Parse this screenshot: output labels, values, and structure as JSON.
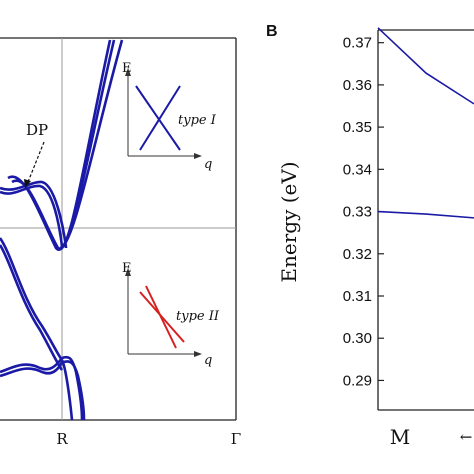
{
  "colors": {
    "band": "#1a1aa6",
    "axis": "#222222",
    "guide": "#9a9a9a",
    "type2": "#d62020"
  },
  "panel_b_label": "B",
  "chart_data": [
    {
      "type": "line",
      "panel": "A",
      "ticks_x": [
        "R",
        "Γ"
      ],
      "annotations": {
        "dp": "DP",
        "inset1_label": "type I",
        "inset2_label": "type II",
        "inset_y": "E",
        "inset_x": "q"
      },
      "series": [
        {
          "values": [
            [
              -0.5,
              0.0
            ],
            [
              -0.15,
              0.03
            ],
            [
              0.0,
              0.028
            ],
            [
              0.2,
              0.02
            ],
            [
              0.35,
              0.015
            ],
            [
              0.5,
              0.018
            ]
          ]
        },
        {
          "values": [
            [
              0.1,
              0.95
            ],
            [
              0.18,
              0.88
            ],
            [
              0.28,
              0.87
            ],
            [
              0.35,
              0.89
            ],
            [
              0.45,
              0.95
            ],
            [
              0.55,
              0.98
            ]
          ]
        },
        {
          "values": [
            [
              0.2,
              0.86
            ],
            [
              0.3,
              0.82
            ],
            [
              0.45,
              0.8
            ],
            [
              0.6,
              0.81
            ]
          ]
        },
        {
          "values": [
            [
              0.5,
              0.45
            ],
            [
              0.58,
              0.35
            ],
            [
              0.7,
              0.3
            ],
            [
              0.82,
              0.32
            ],
            [
              0.95,
              0.42
            ]
          ]
        },
        {
          "values": [
            [
              0.75,
              0.6
            ],
            [
              0.9,
              0.5
            ],
            [
              1.0,
              0.47
            ],
            [
              1.1,
              0.52
            ],
            [
              1.2,
              0.6
            ]
          ]
        }
      ]
    },
    {
      "type": "line",
      "panel": "B",
      "ylabel": "Energy (eV)",
      "ticks_x": [
        "M"
      ],
      "x_arrow": "←",
      "ylim": [
        0.283,
        0.373
      ],
      "yticks": [
        "0.37",
        "0.36",
        "0.35",
        "0.34",
        "0.33",
        "0.32",
        "0.31",
        "0.30",
        "0.29"
      ],
      "series": [
        {
          "values": [
            [
              0.0,
              0.3735
            ],
            [
              0.5,
              0.3628
            ],
            [
              1.0,
              0.3555
            ]
          ]
        },
        {
          "values": [
            [
              0.0,
              0.33
            ],
            [
              0.5,
              0.3294
            ],
            [
              1.0,
              0.3285
            ]
          ]
        }
      ]
    }
  ]
}
